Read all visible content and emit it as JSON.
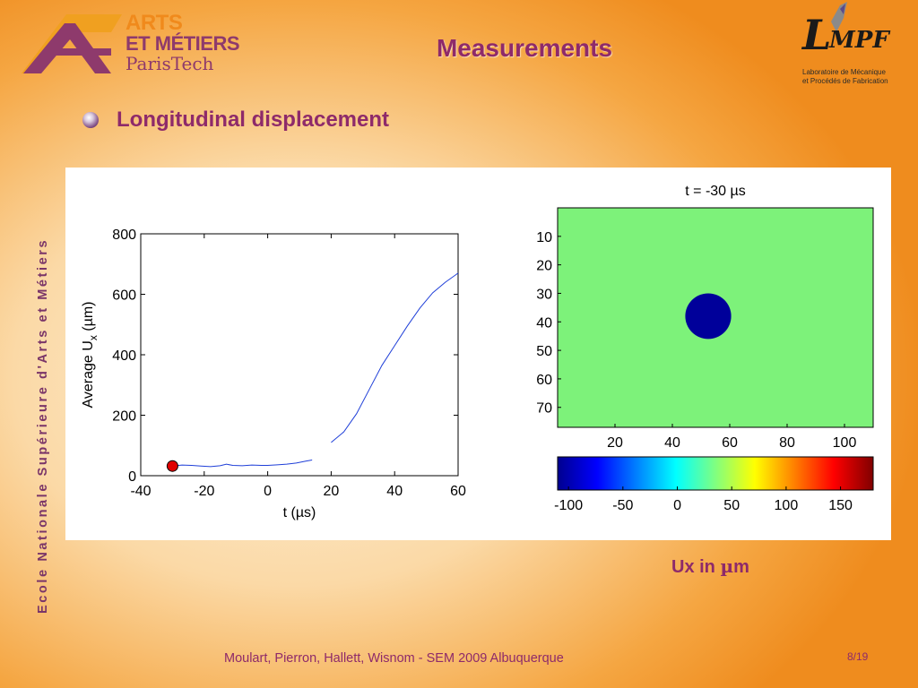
{
  "header": {
    "logo": {
      "line1": "ARTS",
      "line2": "ET MÉTIERS",
      "line3": "ParisTech"
    },
    "title": "Measurements",
    "lab_logo": {
      "l": "L",
      "mpf": "MPF",
      "subtitle_line1": "Laboratoire de Mécanique",
      "subtitle_line2": "et Procédés de Fabrication"
    }
  },
  "sidebar_text": "Ecole Nationale Supérieure d'Arts et Métiers",
  "bullet": {
    "text": "Longitudinal displacement"
  },
  "chart_data": [
    {
      "type": "line",
      "xlabel": "t (µs)",
      "ylabel": "Average U",
      "ylabel_subscript": "x",
      "ylabel_unit": " (µm)",
      "xlim": [
        -40,
        60
      ],
      "ylim": [
        0,
        800
      ],
      "xticks": [
        -40,
        -20,
        0,
        20,
        40,
        60
      ],
      "yticks": [
        0,
        200,
        400,
        600,
        800
      ],
      "line_color": "#1f3fd8",
      "series": [
        {
          "x": [
            -30,
            -27,
            -24,
            -21,
            -18,
            -15,
            -13,
            -11,
            -8,
            -5,
            -2,
            0,
            3,
            6,
            9,
            12,
            14
          ],
          "y": [
            32,
            35,
            34,
            32,
            30,
            33,
            38,
            34,
            33,
            35,
            34,
            34,
            36,
            38,
            42,
            48,
            52
          ]
        },
        {
          "x": [
            20,
            24,
            28,
            32,
            36,
            40,
            44,
            48,
            52,
            56,
            60
          ],
          "y": [
            110,
            145,
            205,
            285,
            365,
            430,
            495,
            555,
            605,
            640,
            670
          ]
        }
      ],
      "marker": {
        "x": -30,
        "y": 32,
        "color": "#e00000"
      }
    },
    {
      "type": "heatmap",
      "title": "t = -30 µs",
      "xlim": [
        0,
        110
      ],
      "ylim": [
        0,
        77
      ],
      "xticks": [
        20,
        40,
        60,
        80,
        100
      ],
      "yticks": [
        10,
        20,
        30,
        40,
        50,
        60,
        70
      ],
      "background_value": 25,
      "background_color": "#7df27a",
      "feature": {
        "shape": "circle",
        "center_x": 52.5,
        "center_y": 38,
        "radius": 8,
        "value": -100,
        "color": "#00009a"
      },
      "colorbar": {
        "ticks": [
          -100,
          -50,
          0,
          50,
          100,
          150
        ],
        "range": [
          -110,
          180
        ],
        "colors": [
          "#00008f",
          "#0000ff",
          "#0080ff",
          "#00ffff",
          "#80ff80",
          "#ffff00",
          "#ff8000",
          "#ff0000",
          "#800000"
        ]
      }
    }
  ],
  "unit_label": {
    "prefix": "Ux in ",
    "mu": "µ",
    "suffix": "m"
  },
  "footer": {
    "text": "Moulart, Pierron, Hallett, Wisnom - SEM 2009 Albuquerque",
    "page": "8/19"
  }
}
